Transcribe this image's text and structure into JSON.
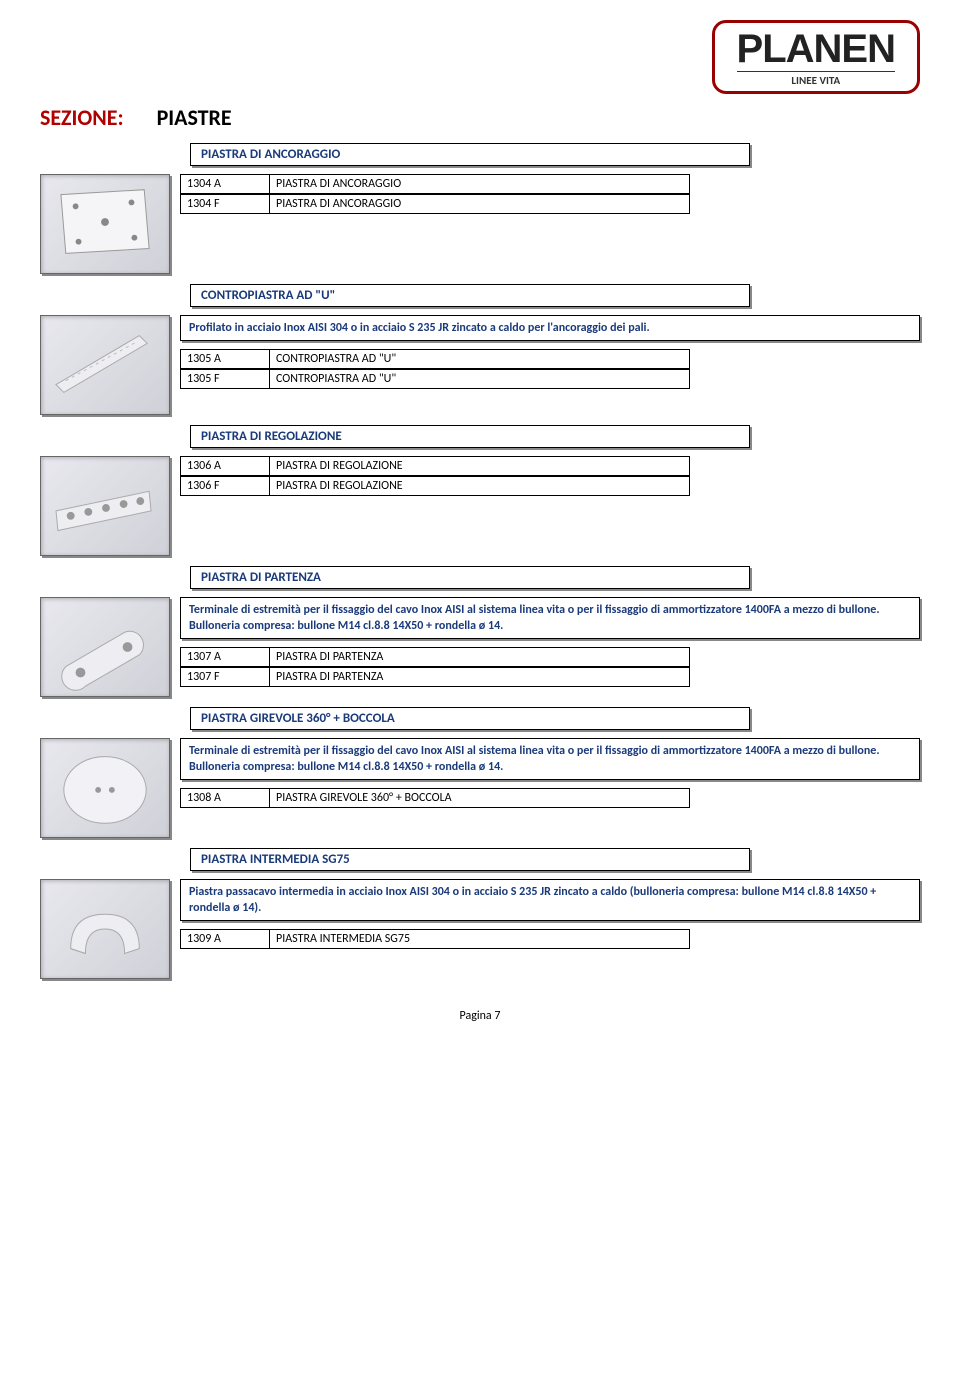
{
  "logo": {
    "main": "PLANEN",
    "sub": "LINEE VITA"
  },
  "section": {
    "label": "SEZIONE:",
    "value": "PIASTRE"
  },
  "colors": {
    "heading_red": "#b00000",
    "frame_blue": "#1a3a7a",
    "logo_border": "#990000"
  },
  "blocks": [
    {
      "title": "PIASTRA DI ANCORAGGIO",
      "thumb": "plate-square",
      "codes": [
        {
          "code": "1304 A",
          "name": "PIASTRA DI ANCORAGGIO"
        },
        {
          "code": "1304 F",
          "name": "PIASTRA DI ANCORAGGIO"
        }
      ]
    },
    {
      "title": "CONTROPIASTRA AD \"U\"",
      "desc": "Profilato in acciaio Inox AISI 304 o in acciaio S 235 JR zincato a caldo per l'ancoraggio dei pali.",
      "thumb": "bar",
      "codes": [
        {
          "code": "1305 A",
          "name": "CONTROPIASTRA AD \"U\""
        },
        {
          "code": "1305 F",
          "name": "CONTROPIASTRA AD \"U\""
        }
      ]
    },
    {
      "title": "PIASTRA DI REGOLAZIONE",
      "thumb": "plate-holes",
      "codes": [
        {
          "code": "1306 A",
          "name": "PIASTRA DI REGOLAZIONE"
        },
        {
          "code": "1306 F",
          "name": "PIASTRA DI REGOLAZIONE"
        }
      ]
    },
    {
      "title": "PIASTRA DI PARTENZA",
      "desc": "Terminale di estremità per il fissaggio del cavo Inox AISI al sistema linea vita o per il fissaggio di ammortizzatore 1400FA a mezzo di bullone. Bulloneria compresa: bullone M14 cl.8.8 14X50 + rondella ø 14.",
      "thumb": "plate-oblong",
      "codes": [
        {
          "code": "1307 A",
          "name": "PIASTRA DI PARTENZA"
        },
        {
          "code": "1307 F",
          "name": "PIASTRA DI PARTENZA"
        }
      ]
    },
    {
      "title": "PIASTRA GIREVOLE 360° + BOCCOLA",
      "desc": "Terminale di estremità per il fissaggio del cavo Inox AISI al sistema linea vita o per il fissaggio di ammortizzatore 1400FA a mezzo di bullone. Bulloneria compresa: bullone M14 cl.8.8 14X50 + rondella ø 14.",
      "thumb": "disc",
      "codes": [
        {
          "code": "1308 A",
          "name": "PIASTRA GIREVOLE 360° + BOCCOLA"
        }
      ]
    },
    {
      "title": "PIASTRA INTERMEDIA SG75",
      "desc": "Piastra passacavo intermedia in acciaio Inox AISI 304 o in acciaio S 235 JR zincato a caldo (bulloneria compresa: bullone M14 cl.8.8 14X50 + rondella ø 14).",
      "thumb": "clip",
      "codes": [
        {
          "code": "1309 A",
          "name": "PIASTRA INTERMEDIA SG75"
        }
      ]
    }
  ],
  "page": "Pagina 7"
}
